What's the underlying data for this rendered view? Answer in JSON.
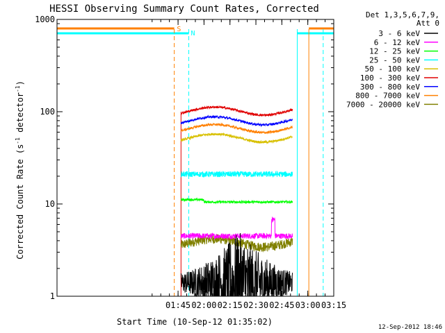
{
  "chart_data": {
    "type": "line",
    "title": "HESSI Observing Summary Count Rates, Corrected",
    "xlabel": "Start Time (10-Sep-12 01:35:02)",
    "ylabel_main": "Corrected Count Rate (s",
    "ylabel_sup1": "-1",
    "ylabel_mid": " detector",
    "ylabel_sup2": "-1",
    "ylabel_end": ")",
    "y_scale": "log",
    "ylim": [
      1,
      1000
    ],
    "xlim_minutes": [
      35.03,
      195
    ],
    "y_ticks": [
      {
        "value": 1,
        "label": "1"
      },
      {
        "value": 10,
        "label": "10"
      },
      {
        "value": 100,
        "label": "100"
      },
      {
        "value": 1000,
        "label": "1000"
      }
    ],
    "x_ticks": [
      {
        "minute": 105,
        "label": "01:45"
      },
      {
        "minute": 120,
        "label": "02:00"
      },
      {
        "minute": 135,
        "label": "02:15"
      },
      {
        "minute": 150,
        "label": "02:30"
      },
      {
        "minute": 165,
        "label": "02:45"
      },
      {
        "minute": 180,
        "label": "03:00"
      },
      {
        "minute": 195,
        "label": "03:15"
      }
    ],
    "legend_header_1": "Det 1,3,5,6,7,9,",
    "legend_header_2": "Att 0",
    "legend_placement": "right",
    "series": [
      {
        "name": "3 - 6 keV",
        "color": "#000000"
      },
      {
        "name": "6 - 12 keV",
        "color": "#ff00ff"
      },
      {
        "name": "12 - 25 keV",
        "color": "#00ff00"
      },
      {
        "name": "25 - 50 keV",
        "color": "#00ffff"
      },
      {
        "name": "50 - 100 keV",
        "color": "#d8c000"
      },
      {
        "name": "100 - 300 keV",
        "color": "#e00000"
      },
      {
        "name": "300 - 800 keV",
        "color": "#0000ff"
      },
      {
        "name": "800 - 7000 keV",
        "color": "#ff8000"
      },
      {
        "name": "7000 - 20000 keV",
        "color": "#808000"
      }
    ],
    "flag_labels": [
      {
        "text": "S",
        "color": "#ff8000"
      },
      {
        "text": "N",
        "color": "#00ffff"
      }
    ],
    "timestamp": "12-Sep-2012 18:46"
  }
}
